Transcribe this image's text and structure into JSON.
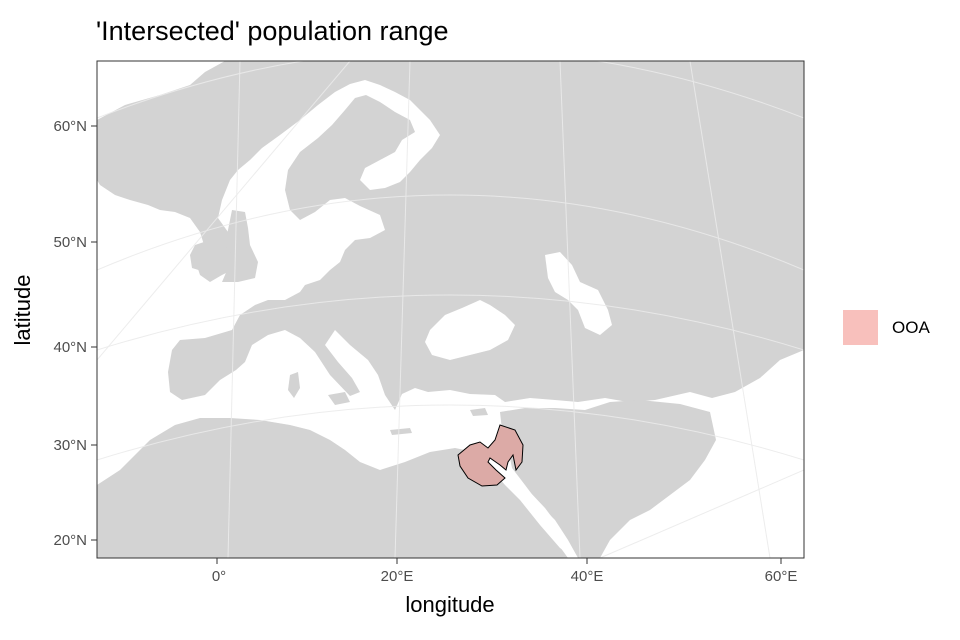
{
  "title": "'Intersected' population range",
  "x_axis": {
    "label": "longitude",
    "ticks": [
      {
        "value": 0,
        "label": "0°"
      },
      {
        "value": 20,
        "label": "20°E"
      },
      {
        "value": 40,
        "label": "40°E"
      },
      {
        "value": 60,
        "label": "60°E"
      }
    ]
  },
  "y_axis": {
    "label": "latitude",
    "ticks": [
      {
        "value": 60,
        "label": "60°N"
      },
      {
        "value": 50,
        "label": "50°N"
      },
      {
        "value": 40,
        "label": "40°N"
      },
      {
        "value": 30,
        "label": "30°N"
      },
      {
        "value": 20,
        "label": "20°N"
      }
    ]
  },
  "legend": {
    "items": [
      {
        "label": "OOA",
        "color": "#f8c0bc"
      }
    ]
  },
  "colors": {
    "land": "#d3d3d3",
    "sea": "#ffffff",
    "graticule": "#ebebeb",
    "range_fill": "#dcaaa6",
    "range_outline": "#000000",
    "panel_border": "#333333"
  },
  "range_region": {
    "name": "OOA",
    "center_lon": 30,
    "center_lat": 29,
    "description_shape": "circular sector around the Nile delta / Sinai"
  }
}
